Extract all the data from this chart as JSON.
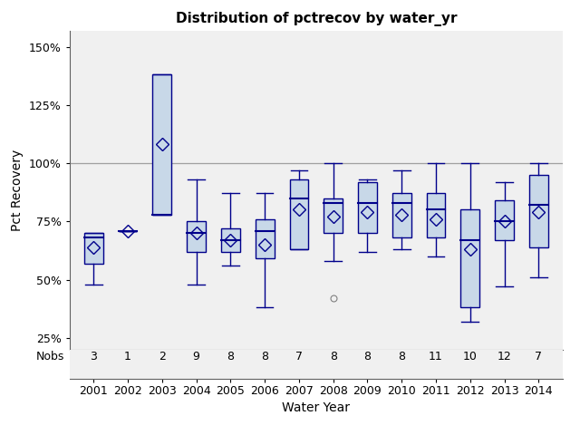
{
  "title": "Distribution of pctrecov by water_yr",
  "xlabel": "Water Year",
  "ylabel": "Pct Recovery",
  "years": [
    2001,
    2002,
    2003,
    2004,
    2005,
    2006,
    2007,
    2008,
    2009,
    2010,
    2011,
    2012,
    2013,
    2014
  ],
  "nobs": [
    3,
    1,
    2,
    9,
    8,
    8,
    7,
    8,
    8,
    8,
    11,
    10,
    12,
    7
  ],
  "boxes": [
    {
      "q1": 57,
      "median": 68,
      "q3": 70,
      "whislo": 48,
      "whishi": 70,
      "mean": 64,
      "fliers": []
    },
    {
      "q1": 71,
      "median": 71,
      "q3": 71,
      "whislo": 71,
      "whishi": 71,
      "mean": 71,
      "fliers": []
    },
    {
      "q1": 78,
      "median": 78,
      "q3": 138,
      "whislo": 78,
      "whishi": 138,
      "mean": 108,
      "fliers": []
    },
    {
      "q1": 62,
      "median": 70,
      "q3": 75,
      "whislo": 48,
      "whishi": 93,
      "mean": 70,
      "fliers": []
    },
    {
      "q1": 62,
      "median": 67,
      "q3": 72,
      "whislo": 56,
      "whishi": 87,
      "mean": 67,
      "fliers": []
    },
    {
      "q1": 59,
      "median": 71,
      "q3": 76,
      "whislo": 38,
      "whishi": 87,
      "mean": 65,
      "fliers": []
    },
    {
      "q1": 63,
      "median": 85,
      "q3": 93,
      "whislo": 63,
      "whishi": 97,
      "mean": 80,
      "fliers": []
    },
    {
      "q1": 70,
      "median": 83,
      "q3": 85,
      "whislo": 58,
      "whishi": 100,
      "mean": 77,
      "fliers": [
        42
      ]
    },
    {
      "q1": 70,
      "median": 83,
      "q3": 92,
      "whislo": 62,
      "whishi": 93,
      "mean": 79,
      "fliers": []
    },
    {
      "q1": 68,
      "median": 83,
      "q3": 87,
      "whislo": 63,
      "whishi": 97,
      "mean": 78,
      "fliers": []
    },
    {
      "q1": 68,
      "median": 80,
      "q3": 87,
      "whislo": 60,
      "whishi": 100,
      "mean": 76,
      "fliers": []
    },
    {
      "q1": 38,
      "median": 67,
      "q3": 80,
      "whislo": 32,
      "whishi": 100,
      "mean": 63,
      "fliers": []
    },
    {
      "q1": 67,
      "median": 75,
      "q3": 84,
      "whislo": 47,
      "whishi": 92,
      "mean": 75,
      "fliers": []
    },
    {
      "q1": 64,
      "median": 82,
      "q3": 95,
      "whislo": 51,
      "whishi": 100,
      "mean": 79,
      "fliers": []
    }
  ],
  "box_color": "#c8d8e8",
  "box_edge_color": "#00008b",
  "median_color": "#00008b",
  "whisker_color": "#00008b",
  "cap_color": "#00008b",
  "mean_marker_color": "#00008b",
  "flier_color": "#808080",
  "ref_line_y": 100,
  "ref_line_color": "#a0a0a0",
  "ylim_min": 20,
  "ylim_max": 157,
  "yticks": [
    25,
    50,
    75,
    100,
    125,
    150
  ],
  "ytick_labels": [
    "25%",
    "50%",
    "75%",
    "100%",
    "125%",
    "150%"
  ],
  "bg_color": "#f0f0f0"
}
